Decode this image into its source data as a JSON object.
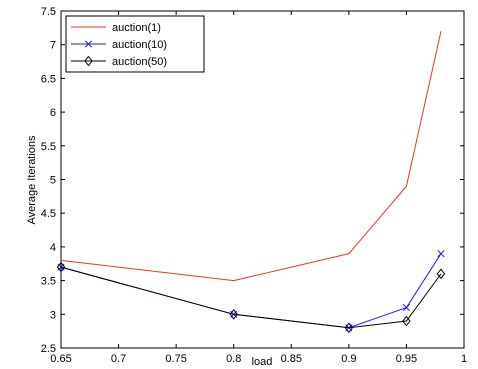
{
  "chart_data": {
    "type": "line",
    "title": "",
    "xlabel": "load",
    "ylabel": "Average Iterations",
    "xlim": [
      0.65,
      1
    ],
    "ylim": [
      2.5,
      7.5
    ],
    "xticks": [
      0.65,
      0.7,
      0.75,
      0.8,
      0.85,
      0.9,
      0.95,
      1
    ],
    "xtick_labels": [
      "0.65",
      "0.7",
      "0.75",
      "0.8",
      "0.85",
      "0.9",
      "0.95",
      "1"
    ],
    "yticks": [
      2.5,
      3,
      3.5,
      4,
      4.5,
      5,
      5.5,
      6,
      6.5,
      7,
      7.5
    ],
    "ytick_labels": [
      "2.5",
      "3",
      "3.5",
      "4",
      "4.5",
      "5",
      "5.5",
      "6",
      "6.5",
      "7",
      "7.5"
    ],
    "grid": false,
    "legend_position": "top-left",
    "series": [
      {
        "name": "auction(1)",
        "color": "#e8391f",
        "marker": "none",
        "x": [
          0.65,
          0.8,
          0.9,
          0.95,
          0.98
        ],
        "y": [
          3.8,
          3.5,
          3.9,
          4.9,
          7.2
        ]
      },
      {
        "name": "auction(10)",
        "color": "#1a1aff",
        "marker": "x",
        "x": [
          0.65,
          0.8,
          0.9,
          0.95,
          0.98
        ],
        "y": [
          3.7,
          3.0,
          2.8,
          3.1,
          3.9
        ]
      },
      {
        "name": "auction(50)",
        "color": "#000000",
        "marker": "diamond",
        "x": [
          0.65,
          0.8,
          0.9,
          0.95,
          0.98
        ],
        "y": [
          3.7,
          3.0,
          2.8,
          2.9,
          3.6
        ]
      }
    ]
  }
}
